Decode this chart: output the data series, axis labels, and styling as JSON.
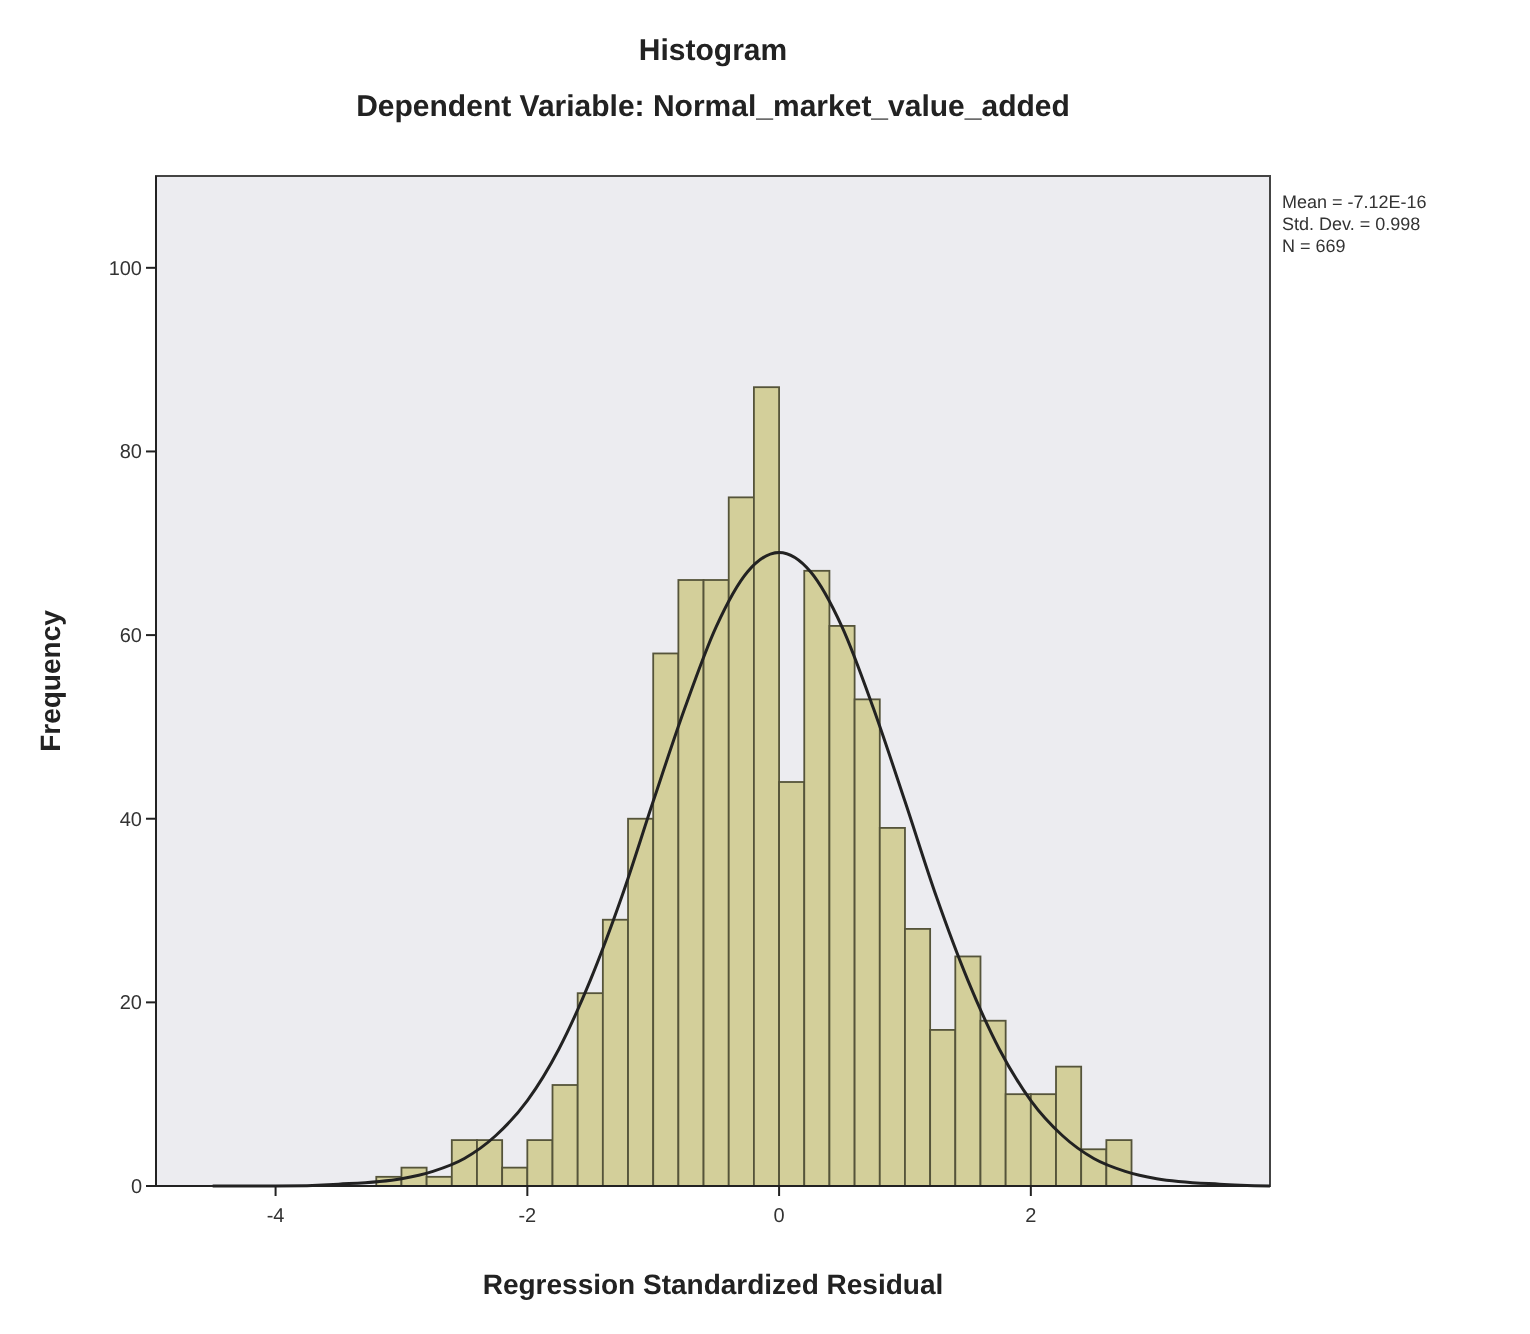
{
  "chart_data": {
    "type": "histogram",
    "title": "Histogram",
    "subtitle": "Dependent Variable: Normal_market_value_added",
    "xlabel": "Regression Standardized Residual",
    "ylabel": "Frequency",
    "annotations": [
      "Mean = -7.12E-16",
      "Std. Dev. = 0.998",
      "N = 669"
    ],
    "xlim": [
      -4.95,
      3.9
    ],
    "xticks": [
      -4,
      -2,
      0,
      2
    ],
    "ylim": [
      0,
      110
    ],
    "yticks": [
      0,
      20,
      40,
      60,
      80,
      100
    ],
    "grid": false,
    "series": [
      {
        "color": "#d3cf9a",
        "bins": [
          -3.2,
          -3.0,
          -2.8,
          -2.6,
          -2.4,
          -2.2,
          -2.0,
          -1.8,
          -1.6,
          -1.4,
          -1.2,
          -1.0,
          -0.8,
          -0.6,
          -0.4,
          -0.2,
          0.0,
          0.2,
          0.4,
          0.6,
          0.8,
          1.0,
          1.2,
          1.4,
          1.6,
          1.8,
          2.0,
          2.2,
          2.4,
          2.6,
          2.8
        ],
        "values": [
          1,
          2,
          1,
          5,
          5,
          2,
          5,
          11,
          21,
          29,
          40,
          58,
          66,
          66,
          75,
          87,
          44,
          67,
          61,
          53,
          39,
          28,
          17,
          25,
          18,
          10,
          10,
          13,
          4,
          5
        ]
      },
      {
        "type": "line",
        "color": "#222222",
        "x": [
          -4.5,
          -4.0,
          -3.5,
          -3.0,
          -2.75,
          -2.5,
          -2.25,
          -2.0,
          -1.75,
          -1.5,
          -1.25,
          -1.0,
          -0.75,
          -0.5,
          -0.25,
          0.0,
          0.25,
          0.5,
          0.75,
          1.0,
          1.25,
          1.5,
          1.75,
          2.0,
          2.25,
          2.5,
          2.75,
          3.0,
          3.5,
          3.9
        ],
        "values": [
          0,
          0,
          0.2,
          0.8,
          1.6,
          3,
          5.5,
          9.3,
          14.9,
          22.4,
          31.5,
          41.9,
          52,
          60.9,
          66.9,
          69,
          66.9,
          60.9,
          52,
          41.9,
          31.5,
          22.4,
          14.9,
          9.3,
          5.5,
          3,
          1.6,
          0.8,
          0.2,
          0
        ]
      }
    ]
  }
}
